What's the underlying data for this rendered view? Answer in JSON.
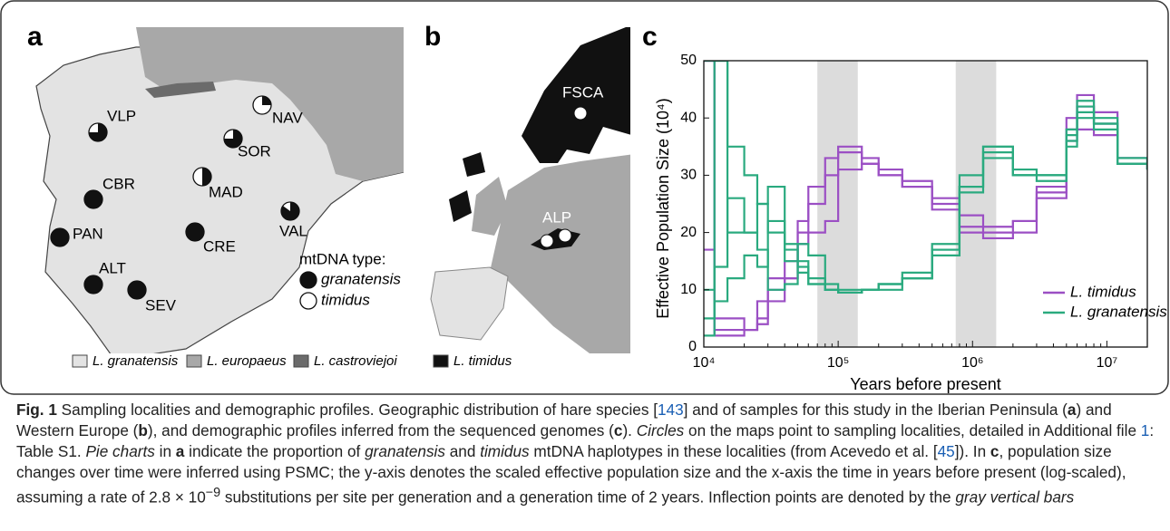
{
  "panel_labels": [
    "a",
    "b",
    "c"
  ],
  "map_a": {
    "localities": [
      {
        "name": "VLP",
        "granatensis_share": 75
      },
      {
        "name": "NAV",
        "granatensis_share": 25
      },
      {
        "name": "SOR",
        "granatensis_share": 75
      },
      {
        "name": "CBR",
        "granatensis_share": 100
      },
      {
        "name": "MAD",
        "granatensis_share": 50
      },
      {
        "name": "VAL",
        "granatensis_share": 85
      },
      {
        "name": "PAN",
        "granatensis_share": 100
      },
      {
        "name": "CRE",
        "granatensis_share": 100
      },
      {
        "name": "ALT",
        "granatensis_share": 100
      },
      {
        "name": "SEV",
        "granatensis_share": 100
      }
    ],
    "mtdna_legend": {
      "title": "mtDNA type:",
      "entries": [
        "granatensis",
        "timidus"
      ]
    }
  },
  "map_b": {
    "localities": [
      "FSCA",
      "ALP"
    ]
  },
  "range_legend": [
    {
      "name": "L. granatensis",
      "color": "#e3e3e3"
    },
    {
      "name": "L. europaeus",
      "color": "#a8a8a8"
    },
    {
      "name": "L. castroviejoi",
      "color": "#6b6b6b"
    },
    {
      "name": "L. timidus",
      "color": "#111111"
    }
  ],
  "chart_data": {
    "type": "step",
    "x_label": "Years before present",
    "y_label": "Effective Population Size (10⁴)",
    "xscale": "log",
    "xlim": [
      10000,
      20000000
    ],
    "ylim": [
      0,
      50
    ],
    "xticks": [
      {
        "value": 10000,
        "label": "10⁴"
      },
      {
        "value": 100000,
        "label": "10⁵"
      },
      {
        "value": 1000000,
        "label": "10⁶"
      },
      {
        "value": 10000000,
        "label": "10⁷"
      }
    ],
    "yticks": [
      0,
      10,
      20,
      30,
      40,
      50
    ],
    "bands": [
      [
        70000,
        140000
      ],
      [
        750000,
        1500000
      ]
    ],
    "legend": "lower right",
    "x": [
      10000,
      12000,
      15000,
      20000,
      25000,
      30000,
      40000,
      50000,
      60000,
      80000,
      100000,
      150000,
      200000,
      300000,
      500000,
      800000,
      1200000,
      2000000,
      3000000,
      5000000,
      6000000,
      8000000,
      12000000,
      20000000
    ],
    "series": [
      {
        "name": "L. timidus",
        "color": "#9b4fc4",
        "runs": [
          [
            50,
            3,
            3,
            3,
            5,
            10,
            12,
            20,
            25,
            30,
            35,
            33,
            31,
            29,
            26,
            23,
            21,
            22,
            27,
            40,
            44,
            41,
            33,
            31
          ],
          [
            17,
            2,
            2,
            3,
            8,
            12,
            15,
            22,
            28,
            33,
            34,
            32,
            30,
            28,
            25,
            21,
            19,
            20,
            26,
            38,
            42,
            39,
            32,
            31
          ],
          [
            50,
            5,
            5,
            3,
            4,
            8,
            12,
            18,
            20,
            22,
            31,
            32,
            30,
            28,
            24,
            20,
            20,
            22,
            28,
            36,
            38,
            37,
            33,
            31
          ]
        ]
      },
      {
        "name": "L. granatensis",
        "color": "#2aaa7f",
        "runs": [
          [
            50,
            50,
            20,
            20,
            25,
            28,
            17,
            14,
            11,
            10,
            9.5,
            10,
            11,
            12,
            17,
            28,
            34,
            30,
            30,
            36,
            41,
            38,
            32,
            31
          ],
          [
            5,
            50,
            35,
            30,
            25,
            20,
            15,
            13,
            11,
            10,
            9.5,
            10,
            11,
            12,
            18,
            30,
            35,
            31,
            30,
            35,
            40,
            39,
            33,
            31
          ],
          [
            2,
            8,
            12,
            16,
            14,
            22,
            18,
            15,
            12,
            10,
            9.5,
            10,
            10,
            12,
            16,
            27,
            33,
            30,
            29,
            37,
            43,
            40,
            33,
            31
          ],
          [
            10,
            14,
            26,
            20,
            17,
            10,
            11,
            18,
            16,
            11,
            10,
            10,
            11,
            13,
            17,
            28,
            35,
            30,
            30,
            38,
            42,
            39,
            32,
            31
          ]
        ]
      }
    ]
  },
  "caption": {
    "segments": [
      {
        "text": "Fig. 1",
        "style": "b"
      },
      {
        "text": " Sampling localities and demographic profiles. Geographic distribution of hare species [",
        "style": ""
      },
      {
        "text": "143",
        "style": "link"
      },
      {
        "text": "] and of samples for this study in the Iberian Peninsula (",
        "style": ""
      },
      {
        "text": "a",
        "style": "b"
      },
      {
        "text": ") and Western Europe (",
        "style": ""
      },
      {
        "text": "b",
        "style": "b"
      },
      {
        "text": "), and demographic profiles inferred from the sequenced genomes (",
        "style": ""
      },
      {
        "text": "c",
        "style": "b"
      },
      {
        "text": "). ",
        "style": ""
      },
      {
        "text": "Circles",
        "style": "i"
      },
      {
        "text": " on the maps point to sampling localities, detailed in Additional file ",
        "style": ""
      },
      {
        "text": "1",
        "style": "link"
      },
      {
        "text": ": Table S1. ",
        "style": ""
      },
      {
        "text": "Pie charts",
        "style": "i"
      },
      {
        "text": " in ",
        "style": ""
      },
      {
        "text": "a",
        "style": "b"
      },
      {
        "text": " indicate the proportion of ",
        "style": ""
      },
      {
        "text": "granatensis",
        "style": "i"
      },
      {
        "text": " and ",
        "style": ""
      },
      {
        "text": "timidus",
        "style": "i"
      },
      {
        "text": " mtDNA haplotypes in these localities (from Acevedo et al. [",
        "style": ""
      },
      {
        "text": "45",
        "style": "link"
      },
      {
        "text": "]). In ",
        "style": ""
      },
      {
        "text": "c",
        "style": "b"
      },
      {
        "text": ", population size changes over time were inferred using PSMC; the y-axis denotes the scaled effective population size and the x-axis the time in years before present (log-scaled), assuming a rate of 2.8 × 10",
        "style": ""
      },
      {
        "text": "−9",
        "style": "sup"
      },
      {
        "text": " substitutions per site per generation and a generation time of 2 years. Inflection points are denoted by the ",
        "style": ""
      },
      {
        "text": "gray vertical bars",
        "style": "i"
      }
    ]
  }
}
